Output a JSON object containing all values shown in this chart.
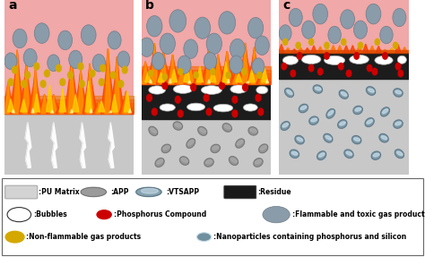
{
  "fig_width": 4.74,
  "fig_height": 2.87,
  "dpi": 100,
  "bg_color": "#ffffff",
  "panel_labels": [
    "a",
    "b",
    "c"
  ],
  "smoke_bubble_color": "#8a9baa",
  "smoke_bubble_ec": "#707d8a",
  "yellow_dot_color": "#d4a800",
  "residue_color": "#1a1a1a",
  "white_bubble_color": "#ffffff",
  "phosphorus_color": "#cc0000",
  "pu_matrix_color": "#c8c8c8",
  "pink_top_color": "#f0a0a0",
  "app_color": "#909090",
  "app_ec": "#606060",
  "vtsapp_color_light": "#c0d0e0",
  "vtsapp_ec": "#90a8b8",
  "lightning_color": "#ffffff"
}
